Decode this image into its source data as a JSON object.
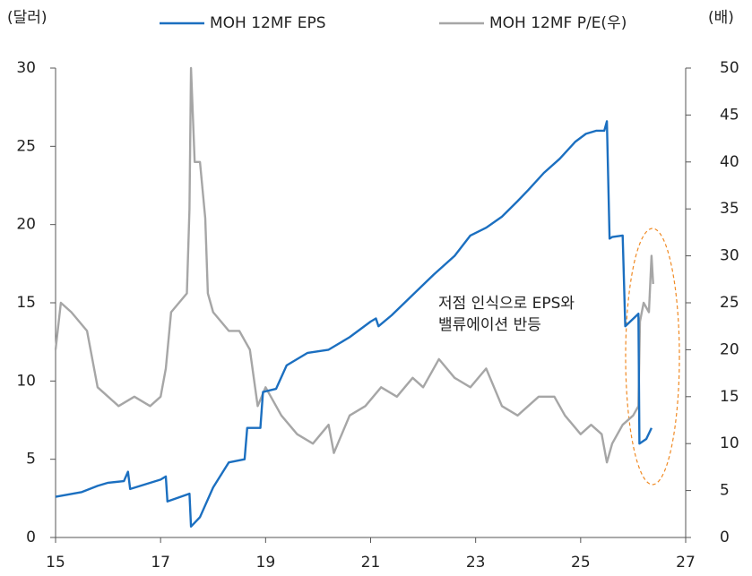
{
  "chart_data": {
    "type": "line",
    "left_unit": "(달러)",
    "right_unit": "(배)",
    "xlim": [
      15,
      27
    ],
    "xticks": [
      15,
      17,
      19,
      21,
      23,
      25,
      27
    ],
    "ylim": [
      0,
      30
    ],
    "yticks": [
      0,
      5,
      10,
      15,
      20,
      25,
      30
    ],
    "y2lim": [
      0,
      50
    ],
    "y2ticks": [
      0,
      5,
      10,
      15,
      20,
      25,
      30,
      35,
      40,
      45,
      50
    ],
    "annotation": [
      "저점 인식으로 EPS와",
      "밸류에이션 반등"
    ],
    "series": [
      {
        "name": "MOH 12MF EPS",
        "color": "#1b6fc0",
        "axis": "y",
        "x": [
          15.0,
          15.5,
          15.8,
          16.0,
          16.3,
          16.38,
          16.42,
          17.0,
          17.1,
          17.13,
          17.55,
          17.58,
          17.75,
          18.0,
          18.3,
          18.6,
          18.65,
          18.9,
          18.95,
          19.2,
          19.4,
          19.8,
          20.2,
          20.6,
          21.0,
          21.1,
          21.15,
          21.4,
          21.8,
          22.2,
          22.6,
          22.9,
          23.2,
          23.5,
          23.8,
          24.0,
          24.3,
          24.6,
          24.9,
          25.1,
          25.3,
          25.45,
          25.5,
          25.55,
          25.6,
          25.8,
          25.85,
          26.1,
          26.12,
          26.25,
          26.35
        ],
        "values": [
          2.6,
          2.9,
          3.3,
          3.5,
          3.6,
          4.2,
          3.1,
          3.7,
          3.9,
          2.3,
          2.8,
          0.7,
          1.3,
          3.2,
          4.8,
          5.0,
          7.0,
          7.0,
          9.3,
          9.5,
          11.0,
          11.8,
          12.0,
          12.8,
          13.8,
          14.0,
          13.5,
          14.2,
          15.5,
          16.8,
          18.0,
          19.3,
          19.8,
          20.5,
          21.5,
          22.2,
          23.3,
          24.2,
          25.3,
          25.8,
          26.0,
          26.0,
          26.6,
          19.1,
          19.2,
          19.3,
          13.5,
          14.3,
          6.0,
          6.3,
          7.0
        ]
      },
      {
        "name": "MOH 12MF P/E(우)",
        "color": "#a6a6a6",
        "axis": "y2",
        "x": [
          15.0,
          15.1,
          15.3,
          15.6,
          15.8,
          16.0,
          16.2,
          16.5,
          16.8,
          17.0,
          17.1,
          17.2,
          17.5,
          17.55,
          17.58,
          17.65,
          17.75,
          17.85,
          17.9,
          18.0,
          18.3,
          18.5,
          18.7,
          18.85,
          19.0,
          19.3,
          19.6,
          19.9,
          20.2,
          20.3,
          20.6,
          20.9,
          21.2,
          21.5,
          21.8,
          22.0,
          22.3,
          22.6,
          22.9,
          23.2,
          23.5,
          23.8,
          24.2,
          24.5,
          24.7,
          25.0,
          25.2,
          25.4,
          25.5,
          25.6,
          25.8,
          26.0,
          26.1,
          26.13,
          26.2,
          26.3,
          26.35,
          26.38
        ],
        "values": [
          20,
          25,
          24,
          22,
          16,
          15,
          14,
          15,
          14,
          15,
          18,
          24,
          26,
          35,
          50,
          40,
          40,
          34,
          26,
          24,
          22,
          22,
          20,
          14,
          16,
          13,
          11,
          10,
          12,
          9,
          13,
          14,
          16,
          15,
          17,
          16,
          19,
          17,
          16,
          18,
          14,
          13,
          15,
          15,
          13,
          11,
          12,
          11,
          8,
          10,
          12,
          13,
          14,
          23,
          25,
          24,
          30,
          27
        ]
      }
    ]
  }
}
